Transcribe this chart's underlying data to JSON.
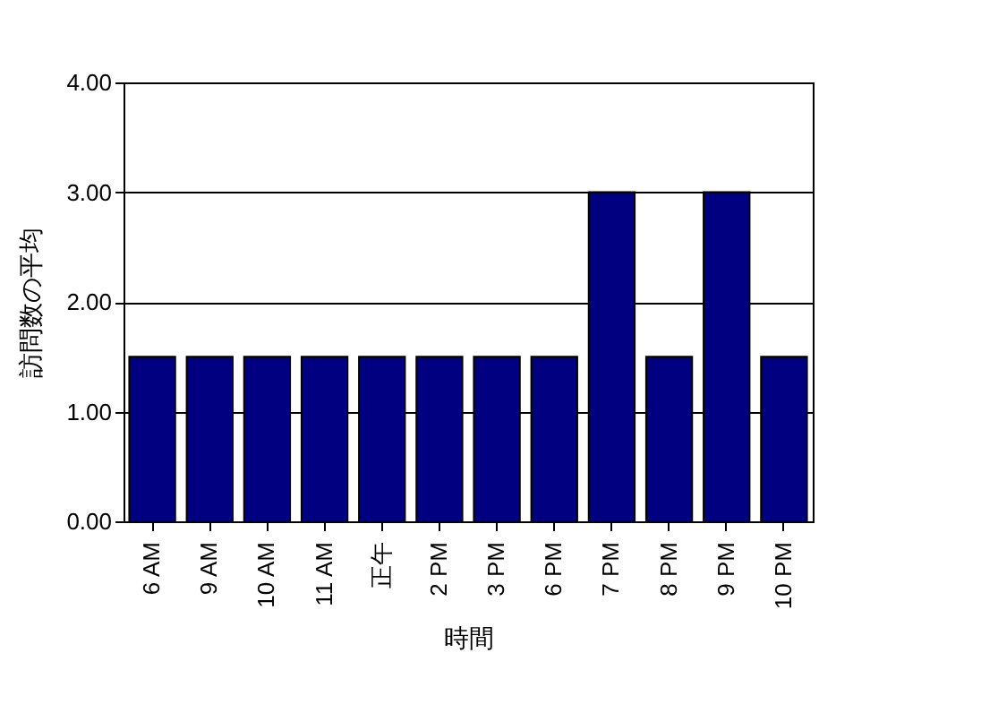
{
  "chart_data": {
    "type": "bar",
    "xlabel": "時間",
    "ylabel": "訪問数の平均",
    "categories": [
      "6 AM",
      "9 AM",
      "10 AM",
      "11 AM",
      "正午",
      "2 PM",
      "3 PM",
      "6 PM",
      "7 PM",
      "8 PM",
      "9 PM",
      "10 PM"
    ],
    "values": [
      1.5,
      1.5,
      1.5,
      1.5,
      1.5,
      1.5,
      1.5,
      1.5,
      3.0,
      1.5,
      3.0,
      1.5
    ],
    "color": "#000080",
    "ylim": [
      0,
      4
    ],
    "yticks": [
      {
        "value": 0,
        "label": "0.00"
      },
      {
        "value": 1,
        "label": "1.00"
      },
      {
        "value": 2,
        "label": "2.00"
      },
      {
        "value": 3,
        "label": "3.00"
      },
      {
        "value": 4,
        "label": "4.00"
      }
    ],
    "grid": "y"
  }
}
